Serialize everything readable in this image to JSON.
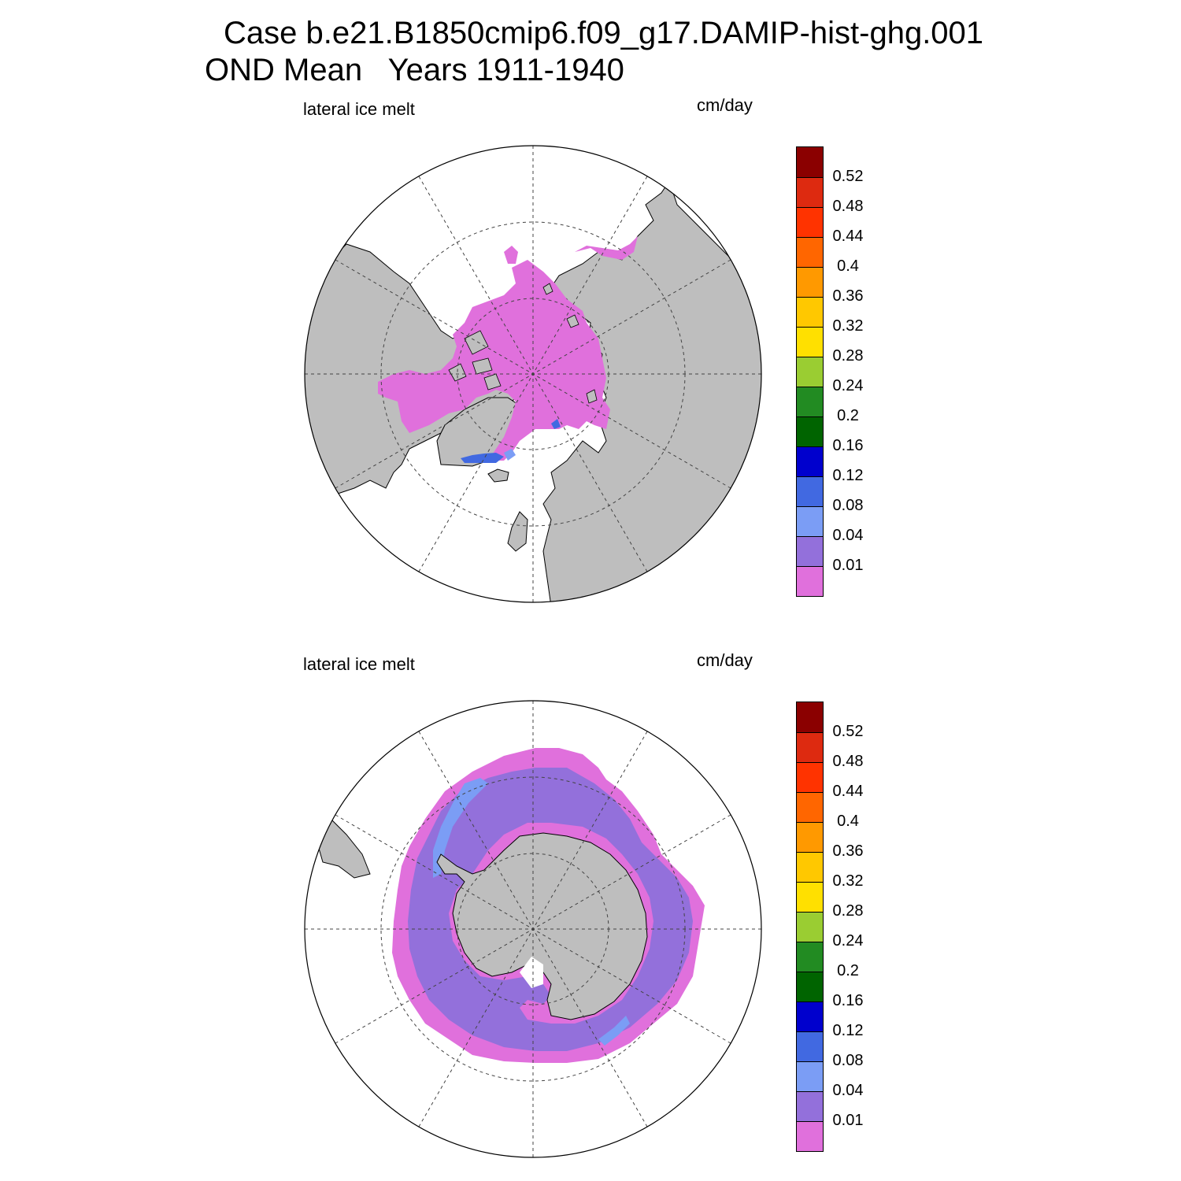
{
  "title": {
    "line1": "Case b.e21.B1850cmip6.f09_g17.DAMIP-hist-ghg.001",
    "line2": "OND Mean   Years 1911-1940"
  },
  "panels": [
    {
      "id": "north",
      "hemisphere": "Northern Hemisphere (polar stereographic)",
      "variable_label": "lateral ice melt",
      "units": "cm/day"
    },
    {
      "id": "south",
      "hemisphere": "Southern Hemisphere (polar stereographic)",
      "variable_label": "lateral ice melt",
      "units": "cm/day"
    }
  ],
  "colorbar": {
    "levels": [
      "0.01",
      "0.04",
      "0.08",
      "0.12",
      "0.16",
      "0.2",
      "0.24",
      "0.28",
      "0.32",
      "0.36",
      "0.4",
      "0.44",
      "0.48",
      "0.52"
    ],
    "colors": [
      "#e070dc",
      "#9370db",
      "#7b9df5",
      "#4169e1",
      "#0000cd",
      "#006400",
      "#228b22",
      "#9acd32",
      "#ffe000",
      "#ffc800",
      "#ff9900",
      "#ff6600",
      "#ff3300",
      "#dd2a10",
      "#8b0000"
    ]
  },
  "map_style": {
    "land_color": "#bebebe",
    "ocean_color": "#ffffff",
    "grid_style": "dashed"
  }
}
